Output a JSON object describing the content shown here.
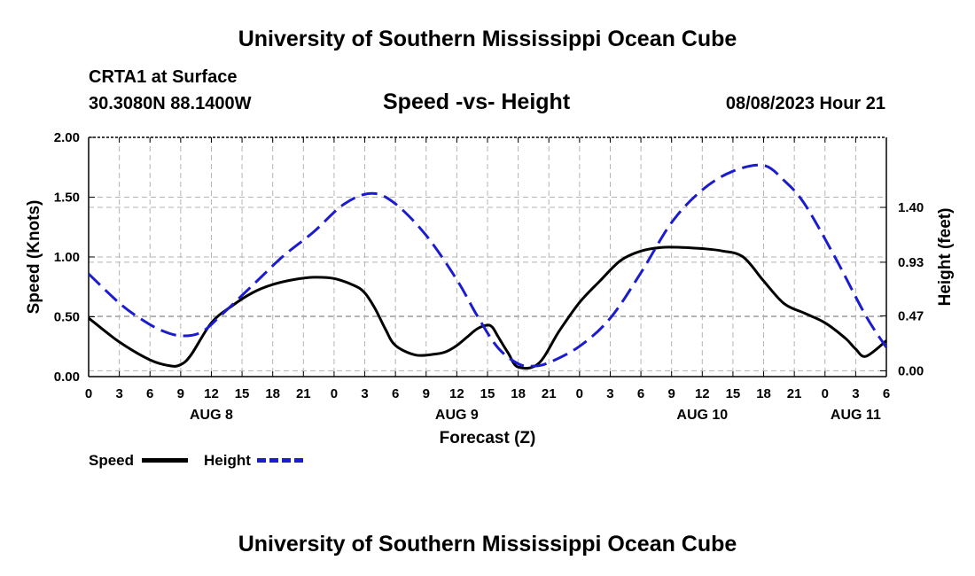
{
  "header": {
    "title": "University of Southern Mississippi Ocean Cube",
    "station": "CRTA1 at Surface",
    "coords": "30.3080N  88.1400W",
    "subtitle": "Speed -vs- Height",
    "datetime": "08/08/2023 Hour 21"
  },
  "footer": {
    "title": "University of Southern Mississippi Ocean Cube"
  },
  "legend": {
    "speed_label": "Speed",
    "height_label": "Height"
  },
  "colors": {
    "speed": "#000000",
    "height": "#1c1ccf",
    "grid": "#b4b4b4"
  },
  "chart_data": {
    "type": "line",
    "title": "Speed -vs- Height",
    "xlabel": "Forecast (Z)",
    "ylabel_left": "Speed (Knots)",
    "ylabel_right": "Height (feet)",
    "x_range_hours": [
      0,
      78
    ],
    "x_tick_step_hours": 3,
    "x_tick_labels": [
      "0",
      "3",
      "6",
      "9",
      "12",
      "15",
      "18",
      "21",
      "0",
      "3",
      "6",
      "9",
      "12",
      "15",
      "18",
      "21",
      "0",
      "3",
      "6",
      "9",
      "12",
      "15",
      "18",
      "21",
      "0",
      "3",
      "6"
    ],
    "date_labels": [
      {
        "hour": 12,
        "label": "AUG 8"
      },
      {
        "hour": 36,
        "label": "AUG 9"
      },
      {
        "hour": 60,
        "label": "AUG 10"
      },
      {
        "hour": 75,
        "label": "AUG 11"
      }
    ],
    "ylim_left": [
      0,
      2
    ],
    "yticks_left": [
      "0.00",
      "0.50",
      "1.00",
      "1.50",
      "2.00"
    ],
    "ylim_right": [
      -0.05,
      2.0
    ],
    "yticks_right": [
      {
        "value": 0.0,
        "label": "0.00"
      },
      {
        "value": 0.47,
        "label": "0.47"
      },
      {
        "value": 0.93,
        "label": "0.93"
      },
      {
        "value": 1.4,
        "label": "1.40"
      }
    ],
    "grid": true,
    "series": [
      {
        "name": "Speed",
        "axis": "left",
        "style": "solid",
        "x": [
          0,
          3,
          6,
          8,
          9,
          10,
          12,
          14,
          16,
          18,
          20,
          22,
          24,
          26,
          27,
          28,
          29,
          30,
          32,
          34,
          35,
          36,
          37,
          38,
          39,
          39.5,
          40,
          41,
          42,
          44,
          46,
          48,
          50,
          52,
          54,
          56,
          58,
          60,
          62,
          64,
          66,
          68,
          70,
          72,
          74,
          75,
          76,
          78
        ],
        "y": [
          0.49,
          0.29,
          0.14,
          0.09,
          0.1,
          0.18,
          0.45,
          0.59,
          0.7,
          0.77,
          0.81,
          0.83,
          0.82,
          0.76,
          0.7,
          0.57,
          0.4,
          0.26,
          0.18,
          0.19,
          0.21,
          0.26,
          0.33,
          0.4,
          0.43,
          0.41,
          0.34,
          0.2,
          0.08,
          0.11,
          0.38,
          0.62,
          0.8,
          0.97,
          1.05,
          1.08,
          1.08,
          1.07,
          1.05,
          1.0,
          0.8,
          0.61,
          0.53,
          0.45,
          0.32,
          0.23,
          0.17,
          0.3
        ]
      },
      {
        "name": "Height",
        "axis": "right",
        "style": "dashed",
        "x": [
          0,
          3,
          5,
          7,
          9,
          11,
          13,
          16,
          19,
          22,
          25,
          27.7,
          30,
          33,
          36,
          38,
          40,
          42,
          43.5,
          45,
          48,
          51,
          54,
          57,
          60,
          63,
          66,
          68,
          70,
          73,
          76,
          78
        ],
        "y": [
          0.83,
          0.58,
          0.45,
          0.35,
          0.3,
          0.33,
          0.48,
          0.73,
          0.98,
          1.19,
          1.43,
          1.52,
          1.43,
          1.16,
          0.78,
          0.47,
          0.2,
          0.06,
          0.04,
          0.07,
          0.21,
          0.45,
          0.84,
          1.27,
          1.55,
          1.71,
          1.76,
          1.63,
          1.43,
          0.97,
          0.47,
          0.2
        ]
      }
    ]
  }
}
